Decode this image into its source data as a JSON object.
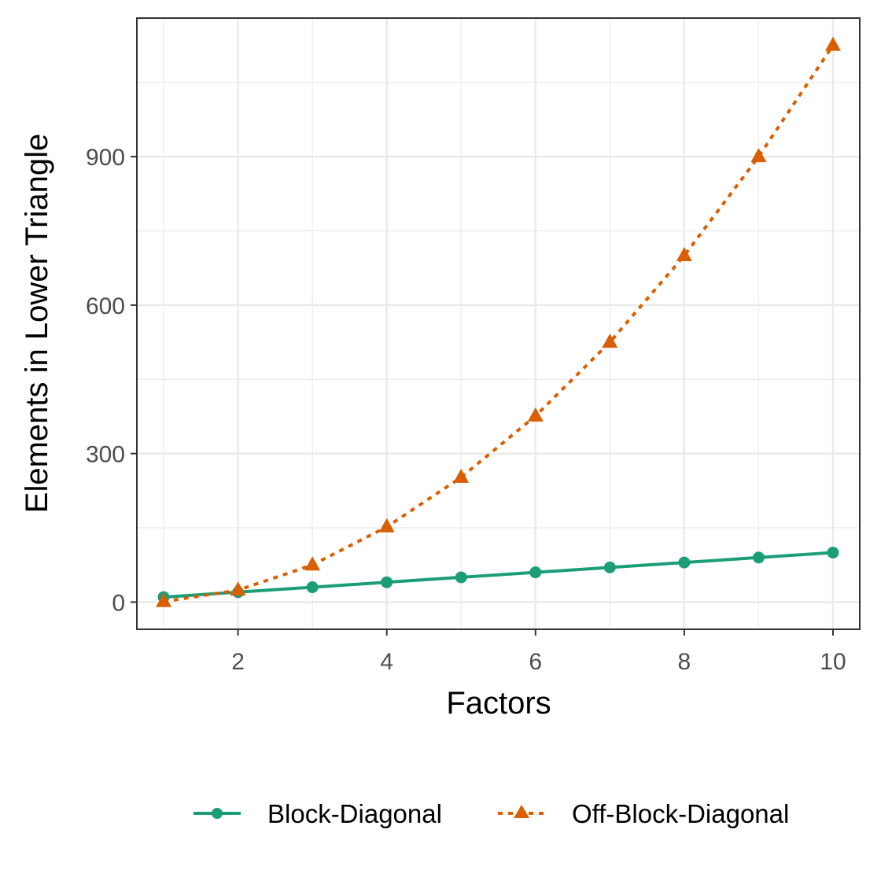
{
  "chart_data": {
    "type": "line",
    "title": "",
    "xlabel": "Factors",
    "ylabel": "Elements in Lower Triangle",
    "x": [
      1,
      2,
      3,
      4,
      5,
      6,
      7,
      8,
      9,
      10
    ],
    "xlim": [
      0.64,
      10.36
    ],
    "ylim": [
      -55,
      1180
    ],
    "x_ticks": [
      2,
      4,
      6,
      8,
      10
    ],
    "y_ticks": [
      0,
      300,
      600,
      900
    ],
    "grid": true,
    "legend_position": "bottom",
    "series": [
      {
        "name": "Block-Diagonal",
        "values": [
          10,
          20,
          30,
          40,
          50,
          60,
          70,
          80,
          90,
          100
        ],
        "color": "#1b9e77",
        "line_style": "solid",
        "marker": "circle"
      },
      {
        "name": "Off-Block-Diagonal",
        "values": [
          1,
          24,
          75,
          152,
          252,
          376,
          525,
          700,
          900,
          1125
        ],
        "color": "#d95f02",
        "line_style": "dotted",
        "marker": "triangle"
      }
    ]
  }
}
